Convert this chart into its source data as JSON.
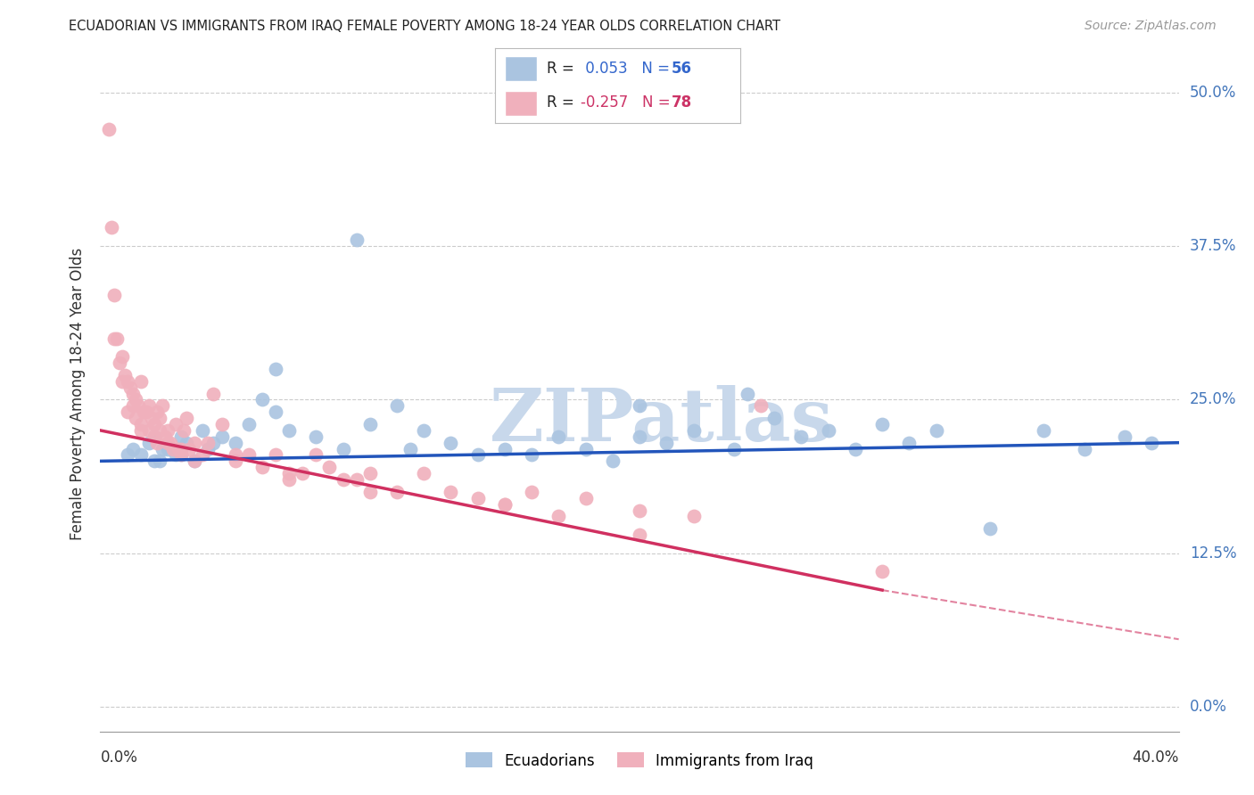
{
  "title": "ECUADORIAN VS IMMIGRANTS FROM IRAQ FEMALE POVERTY AMONG 18-24 YEAR OLDS CORRELATION CHART",
  "source": "Source: ZipAtlas.com",
  "ylabel": "Female Poverty Among 18-24 Year Olds",
  "ytick_labels": [
    "0.0%",
    "12.5%",
    "25.0%",
    "37.5%",
    "50.0%"
  ],
  "ytick_values": [
    0,
    12.5,
    25.0,
    37.5,
    50.0
  ],
  "xmin": 0.0,
  "xmax": 40.0,
  "ymin": -2.0,
  "ymax": 53.0,
  "blue_r": 0.053,
  "blue_n": 56,
  "pink_r": -0.257,
  "pink_n": 78,
  "blue_color": "#aac4e0",
  "pink_color": "#f0b0bc",
  "blue_line_color": "#2255bb",
  "pink_line_color": "#d03060",
  "blue_line_y0": 20.0,
  "blue_line_y1": 21.5,
  "pink_line_y0": 22.5,
  "pink_line_solid_end_x": 29.0,
  "pink_line_solid_end_y": 9.5,
  "pink_line_dashed_end_x": 40.0,
  "pink_line_dashed_end_y": 5.5,
  "watermark_text": "ZIPatlas",
  "watermark_color": "#c8d8eb",
  "blue_scatter_x": [
    1.0,
    1.2,
    1.5,
    1.8,
    2.0,
    2.2,
    2.5,
    2.8,
    3.0,
    3.2,
    3.5,
    3.8,
    4.0,
    4.5,
    5.0,
    5.5,
    6.0,
    6.5,
    7.0,
    8.0,
    9.0,
    10.0,
    11.0,
    11.5,
    12.0,
    13.0,
    14.0,
    15.0,
    16.0,
    17.0,
    18.0,
    19.0,
    20.0,
    21.0,
    22.0,
    23.5,
    25.0,
    26.0,
    27.0,
    28.0,
    29.0,
    30.0,
    31.0,
    33.0,
    35.0,
    36.5,
    38.0,
    39.0,
    2.0,
    2.3,
    3.0,
    4.2,
    6.5,
    9.5,
    20.0,
    24.0
  ],
  "blue_scatter_y": [
    20.5,
    21.0,
    20.5,
    21.5,
    22.0,
    20.0,
    21.0,
    20.5,
    22.0,
    21.5,
    20.0,
    22.5,
    21.0,
    22.0,
    21.5,
    23.0,
    25.0,
    24.0,
    22.5,
    22.0,
    21.0,
    23.0,
    24.5,
    21.0,
    22.5,
    21.5,
    20.5,
    21.0,
    20.5,
    22.0,
    21.0,
    20.0,
    22.0,
    21.5,
    22.5,
    21.0,
    23.5,
    22.0,
    22.5,
    21.0,
    23.0,
    21.5,
    22.5,
    14.5,
    22.5,
    21.0,
    22.0,
    21.5,
    20.0,
    21.0,
    20.5,
    21.5,
    27.5,
    38.0,
    24.5,
    25.5
  ],
  "pink_scatter_x": [
    0.3,
    0.4,
    0.5,
    0.6,
    0.7,
    0.8,
    0.9,
    1.0,
    1.0,
    1.1,
    1.2,
    1.2,
    1.3,
    1.3,
    1.4,
    1.5,
    1.5,
    1.6,
    1.7,
    1.8,
    1.8,
    1.9,
    2.0,
    2.0,
    2.1,
    2.1,
    2.2,
    2.3,
    2.4,
    2.5,
    2.5,
    2.6,
    2.7,
    2.8,
    2.9,
    3.0,
    3.0,
    3.1,
    3.2,
    3.3,
    3.5,
    3.8,
    4.0,
    4.2,
    4.5,
    5.0,
    5.5,
    6.0,
    6.5,
    7.0,
    7.5,
    8.0,
    8.5,
    9.0,
    9.5,
    10.0,
    11.0,
    12.0,
    13.0,
    14.0,
    15.0,
    16.0,
    17.0,
    18.0,
    20.0,
    22.0,
    24.5,
    29.0,
    0.5,
    0.8,
    1.5,
    2.2,
    3.5,
    5.0,
    7.0,
    10.0,
    15.0,
    20.0
  ],
  "pink_scatter_y": [
    47.0,
    39.0,
    33.5,
    30.0,
    28.0,
    28.5,
    27.0,
    26.5,
    24.0,
    26.0,
    25.5,
    24.5,
    25.0,
    23.5,
    24.5,
    26.5,
    23.0,
    24.0,
    24.0,
    24.5,
    22.5,
    23.5,
    23.0,
    22.0,
    24.0,
    21.5,
    22.5,
    24.5,
    22.0,
    22.5,
    21.5,
    21.5,
    21.0,
    23.0,
    21.0,
    21.0,
    20.5,
    22.5,
    23.5,
    21.0,
    20.0,
    20.5,
    21.5,
    25.5,
    23.0,
    20.5,
    20.5,
    19.5,
    20.5,
    19.0,
    19.0,
    20.5,
    19.5,
    18.5,
    18.5,
    19.0,
    17.5,
    19.0,
    17.5,
    17.0,
    16.5,
    17.5,
    15.5,
    17.0,
    16.0,
    15.5,
    24.5,
    11.0,
    30.0,
    26.5,
    22.5,
    23.5,
    21.5,
    20.0,
    18.5,
    17.5,
    16.5,
    14.0
  ]
}
